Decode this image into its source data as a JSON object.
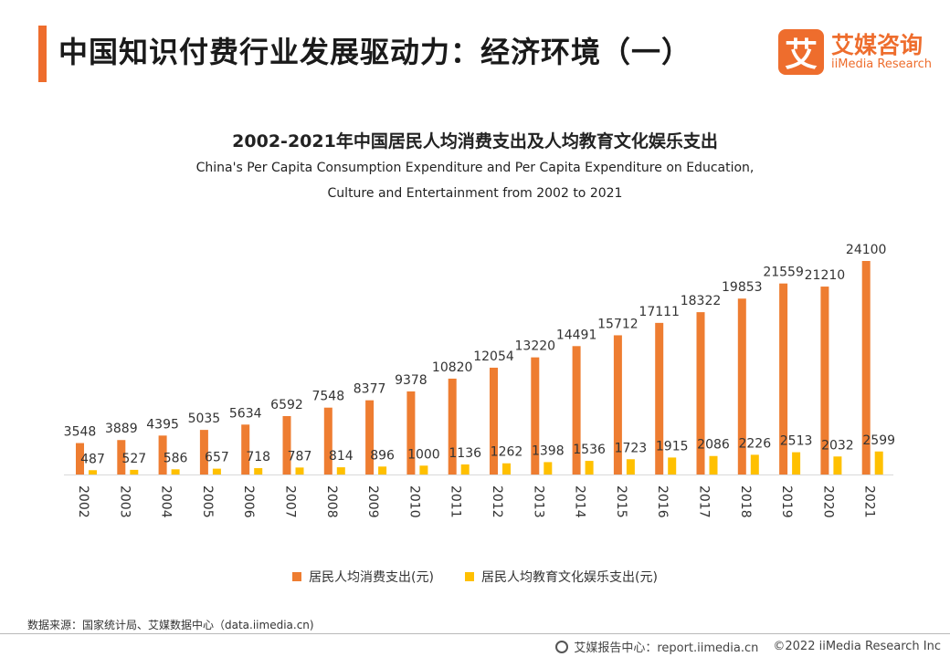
{
  "header": {
    "title": "中国知识付费行业发展驱动力：经济环境（一）"
  },
  "logo": {
    "mark": "艾",
    "name_cn": "艾媒咨询",
    "name_en": "iiMedia Research"
  },
  "colors": {
    "accent": "#ee6d2d",
    "series1": "#ee7d31",
    "series2": "#ffc000"
  },
  "chart_data": {
    "type": "bar",
    "title": "2002-2021年中国居民人均消费支出及人均教育文化娱乐支出",
    "subtitle_line1": "China's Per Capita Consumption Expenditure and Per Capita Expenditure on Education,",
    "subtitle_line2": "Culture and Entertainment from 2002 to 2021",
    "categories": [
      "2002",
      "2003",
      "2004",
      "2005",
      "2006",
      "2007",
      "2008",
      "2009",
      "2010",
      "2011",
      "2012",
      "2013",
      "2014",
      "2015",
      "2016",
      "2017",
      "2018",
      "2019",
      "2020",
      "2021"
    ],
    "series": [
      {
        "name": "居民人均消费支出(元)",
        "values": [
          3548,
          3889,
          4395,
          5035,
          5634,
          6592,
          7548,
          8377,
          9378,
          10820,
          12054,
          13220,
          14491,
          15712,
          17111,
          18322,
          19853,
          21559,
          21210,
          24100
        ]
      },
      {
        "name": "居民人均教育文化娱乐支出(元)",
        "values": [
          487,
          527,
          586,
          657,
          718,
          787,
          814,
          896,
          1000,
          1136,
          1262,
          1398,
          1536,
          1723,
          1915,
          2086,
          2226,
          2513,
          2032,
          2599
        ]
      }
    ],
    "ylim": [
      0,
      24100
    ],
    "xlabel": "",
    "ylabel": "",
    "legend": "bottom"
  },
  "footer": {
    "source": "数据来源：国家统计局、艾媒数据中心（data.iimedia.cn)",
    "center": "艾媒报告中心：report.iimedia.cn",
    "copyright": "©2022  iiMedia Research  Inc"
  }
}
